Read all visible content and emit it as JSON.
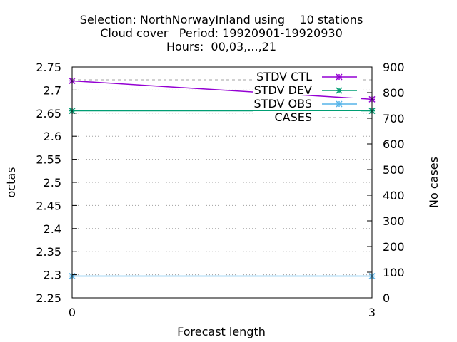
{
  "title_lines": [
    "Selection: NorthNorwayInland using    10 stations",
    "Cloud cover   Period: 19920901-19920930",
    "Hours:  00,03,...,21"
  ],
  "chart_data": {
    "type": "line",
    "xlabel": "Forecast length",
    "ylabel": "octas",
    "y2label": "No cases",
    "x": [
      0,
      3
    ],
    "xticks": [
      "0",
      "3"
    ],
    "xlim": [
      0,
      3
    ],
    "ylim": [
      2.25,
      2.75
    ],
    "yticks": [
      "2.25",
      "2.3",
      "2.35",
      "2.4",
      "2.45",
      "2.5",
      "2.55",
      "2.6",
      "2.65",
      "2.7",
      "2.75"
    ],
    "y2lim": [
      0,
      900
    ],
    "y2ticks": [
      "0",
      "100",
      "200",
      "300",
      "400",
      "500",
      "600",
      "700",
      "800",
      "900"
    ],
    "grid": "horizontal-dotted",
    "legend_position": "top-right",
    "series": [
      {
        "name": "STDV CTL",
        "axis": "y",
        "values": [
          2.72,
          2.68
        ],
        "color": "#9400d3",
        "marker": "x"
      },
      {
        "name": "STDV DEV",
        "axis": "y",
        "values": [
          2.655,
          2.655
        ],
        "color": "#009e73",
        "marker": "x"
      },
      {
        "name": "STDV OBS",
        "axis": "y",
        "values": [
          2.297,
          2.297
        ],
        "color": "#56b4e9",
        "marker": "x"
      },
      {
        "name": "CASES",
        "axis": "y2",
        "values": [
          850,
          850
        ],
        "color": "#a0a0a0",
        "dashed": true
      }
    ]
  }
}
